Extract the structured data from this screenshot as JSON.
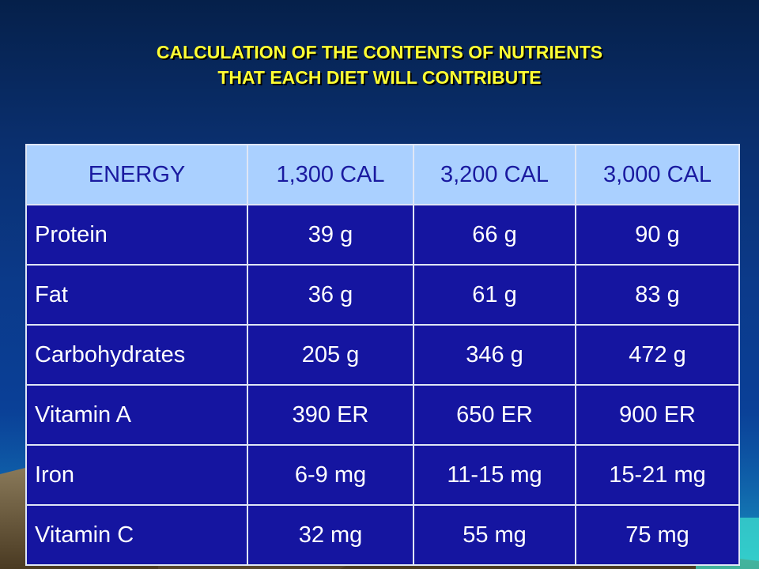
{
  "slide": {
    "title_line1": "CALCULATION OF THE CONTENTS OF NUTRIENTS",
    "title_line2": "THAT EACH DIET WILL CONTRIBUTE"
  },
  "table": {
    "header": [
      "ENERGY",
      "1,300 CAL",
      "3,200 CAL",
      "3,000 CAL"
    ],
    "rows": [
      [
        "Protein",
        "39 g",
        "66 g",
        "90 g"
      ],
      [
        "Fat",
        "36 g",
        "61 g",
        "83 g"
      ],
      [
        "Carbohydrates",
        "205 g",
        "346 g",
        "472 g"
      ],
      [
        "Vitamin A",
        "390 ER",
        "650 ER",
        "900 ER"
      ],
      [
        "Iron",
        "6-9 mg",
        "11-15 mg",
        "15-21 mg"
      ],
      [
        "Vitamin C",
        "32 mg",
        "55 mg",
        "75 mg"
      ]
    ]
  },
  "colors": {
    "title": "#ffff33",
    "header_bg": "#aad0ff",
    "header_text": "#1a1aa0",
    "cell_bg": "#1515a0",
    "cell_text": "#ffffff"
  }
}
